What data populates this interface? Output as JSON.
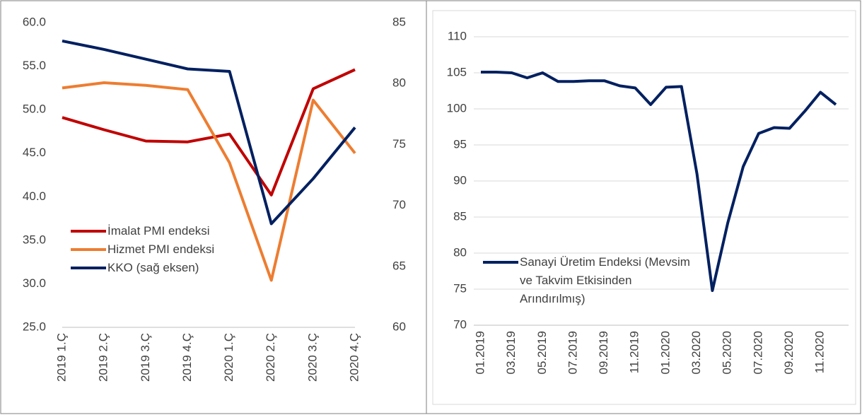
{
  "chart_data": [
    {
      "type": "line",
      "categories": [
        "2019 1.Ç",
        "2019 2.Ç",
        "2019 3.Ç",
        "2019 4.Ç",
        "2020 1.Ç",
        "2020 2.Ç",
        "2020 3.Ç",
        "2020 4.Ç"
      ],
      "series": [
        {
          "name": "İmalat PMI endeksi",
          "color": "#c00000",
          "values": [
            49.1,
            47.7,
            46.4,
            46.3,
            47.2,
            40.2,
            52.4,
            54.6
          ]
        },
        {
          "name": "Hizmet PMI endeksi",
          "color": "#ed7d31",
          "values": [
            52.5,
            53.1,
            52.8,
            52.3,
            43.9,
            30.4,
            51.1,
            45.0
          ]
        },
        {
          "name": "KKO (sağ eksen)",
          "color": "#002060",
          "axis": "y2",
          "values": [
            83.5,
            82.8,
            82.0,
            81.2,
            81.0,
            68.5,
            72.2,
            76.4
          ]
        }
      ],
      "ylim": [
        25,
        60
      ],
      "yticks": [
        {
          "value": 25,
          "label": "25.0"
        },
        {
          "value": 30,
          "label": "30.0"
        },
        {
          "value": 35,
          "label": "35.0"
        },
        {
          "value": 40,
          "label": "40.0"
        },
        {
          "value": 45,
          "label": "45.0"
        },
        {
          "value": 50,
          "label": "50.0"
        },
        {
          "value": 55,
          "label": "55.0"
        },
        {
          "value": 60,
          "label": "60.0"
        }
      ],
      "y2lim": [
        60,
        85
      ],
      "y2ticks": [
        60,
        65,
        70,
        75,
        80,
        85
      ],
      "grid": false
    },
    {
      "type": "line",
      "categories": [
        "01.2019",
        null,
        "03.2019",
        null,
        "05.2019",
        null,
        "07.2019",
        null,
        "09.2019",
        null,
        "11.2019",
        null,
        "01.2020",
        null,
        "03.2020",
        null,
        "05.2020",
        null,
        "07.2020",
        null,
        "09.2020",
        null,
        "11.2020",
        null
      ],
      "series": [
        {
          "name": "Sanayi Üretim Endeksi (Mevsim ve Takvim Etkisinden Arındırılmış)",
          "color": "#002060",
          "values": [
            105.1,
            105.1,
            105.0,
            104.3,
            105.0,
            103.8,
            103.8,
            103.9,
            103.9,
            103.2,
            102.9,
            100.6,
            103.0,
            103.1,
            91.0,
            74.8,
            84.2,
            92.0,
            96.6,
            97.4,
            97.3,
            99.7,
            102.3,
            100.6
          ]
        }
      ],
      "ylim": [
        70,
        110
      ],
      "yticks": [
        70,
        75,
        80,
        85,
        90,
        95,
        100,
        105,
        110
      ],
      "grid": true
    }
  ]
}
